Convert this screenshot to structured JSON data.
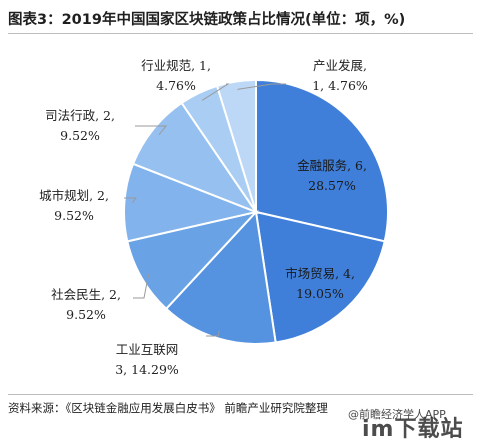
{
  "title": "图表3：2019年中国国家区块链政策占比情况(单位：项，%)",
  "source": "资料来源：《区块链金融应用发展白皮书》 前瞻产业研究院整理",
  "watermark": "@前瞻经济学人APP",
  "watermark_logo": "im下载站",
  "chart_data": {
    "type": "pie",
    "title": "图表3：2019年中国国家区块链政策占比情况(单位：项，%)",
    "unit": "项，%",
    "start_angle_deg": 0,
    "direction": "clockwise",
    "slices": [
      {
        "name": "金融服务",
        "value": 6,
        "percent": "28.57%",
        "color": "#3f7fd9",
        "label_value": "6,"
      },
      {
        "name": "市场贸易",
        "value": 4,
        "percent": "19.05%",
        "color": "#3f7fd9",
        "label_value": "4,"
      },
      {
        "name": "工业互联网",
        "value": 3,
        "percent": "14.29%",
        "color": "#5592e0",
        "label_value": "3,"
      },
      {
        "name": "社会民生",
        "value": 2,
        "percent": "9.52%",
        "color": "#6aa2e6",
        "label_value": "2,"
      },
      {
        "name": "城市规划",
        "value": 2,
        "percent": "9.52%",
        "color": "#82b3ec",
        "label_value": "2,"
      },
      {
        "name": "司法行政",
        "value": 2,
        "percent": "9.52%",
        "color": "#96c0f0",
        "label_value": "2,"
      },
      {
        "name": "行业规范",
        "value": 1,
        "percent": "4.76%",
        "color": "#a9cdf3",
        "label_value": "1,"
      },
      {
        "name": "产业发展",
        "value": 1,
        "percent": "4.76%",
        "color": "#bcd8f6",
        "label_value": "1,"
      }
    ]
  }
}
